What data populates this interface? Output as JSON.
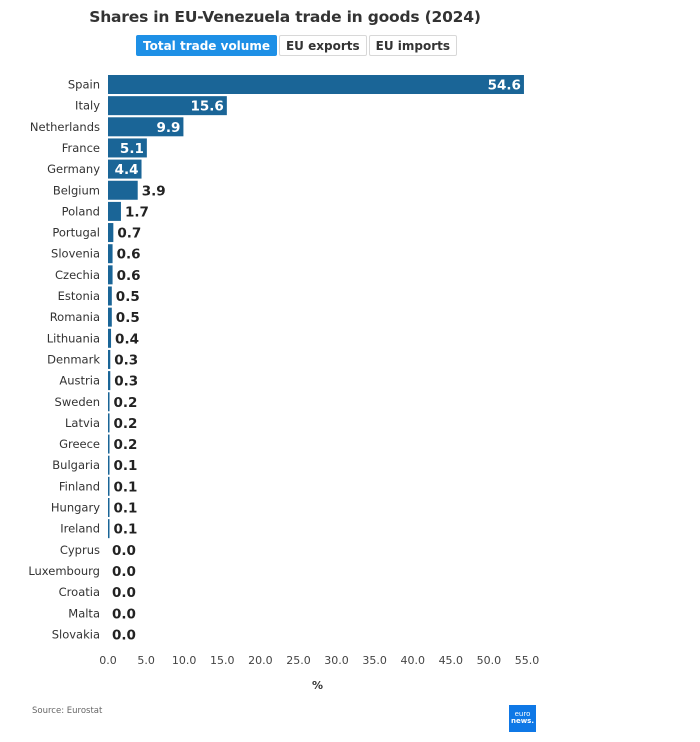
{
  "header": {
    "title": "Shares in EU-Venezuela trade in goods (2024)",
    "tabs": [
      {
        "label": "Total trade volume",
        "active": true
      },
      {
        "label": "EU exports",
        "active": false
      },
      {
        "label": "EU imports",
        "active": false
      }
    ]
  },
  "chart_data": {
    "type": "bar",
    "orientation": "horizontal",
    "title": "Shares in EU-Venezuela trade in goods (2024)",
    "xlabel": "%",
    "ylabel": "",
    "xlim": [
      0,
      55
    ],
    "xticks": [
      0,
      5,
      10,
      15,
      20,
      25,
      30,
      35,
      40,
      45,
      50,
      55
    ],
    "xtick_labels": [
      "0.0",
      "5.0",
      "10.0",
      "15.0",
      "20.0",
      "25.0",
      "30.0",
      "35.0",
      "40.0",
      "45.0",
      "50.0",
      "55.0"
    ],
    "grid": false,
    "bar_color": "#1a6597",
    "categories": [
      "Spain",
      "Italy",
      "Netherlands",
      "France",
      "Germany",
      "Belgium",
      "Poland",
      "Portugal",
      "Slovenia",
      "Czechia",
      "Estonia",
      "Romania",
      "Lithuania",
      "Denmark",
      "Austria",
      "Sweden",
      "Latvia",
      "Greece",
      "Bulgaria",
      "Finland",
      "Hungary",
      "Ireland",
      "Cyprus",
      "Luxembourg",
      "Croatia",
      "Malta",
      "Slovakia"
    ],
    "values": [
      54.6,
      15.6,
      9.9,
      5.1,
      4.4,
      3.9,
      1.7,
      0.7,
      0.6,
      0.6,
      0.5,
      0.5,
      0.4,
      0.3,
      0.3,
      0.2,
      0.2,
      0.2,
      0.1,
      0.1,
      0.1,
      0.1,
      0.0,
      0.0,
      0.0,
      0.0,
      0.0
    ],
    "value_labels": [
      "54.6",
      "15.6",
      "9.9",
      "5.1",
      "4.4",
      "3.9",
      "1.7",
      "0.7",
      "0.6",
      "0.6",
      "0.5",
      "0.5",
      "0.4",
      "0.3",
      "0.3",
      "0.2",
      "0.2",
      "0.2",
      "0.1",
      "0.1",
      "0.1",
      "0.1",
      "0.0",
      "0.0",
      "0.0",
      "0.0",
      "0.0"
    ]
  },
  "footer": {
    "source": "Source: Eurostat",
    "logo_line1": "euro",
    "logo_line2": "news."
  }
}
